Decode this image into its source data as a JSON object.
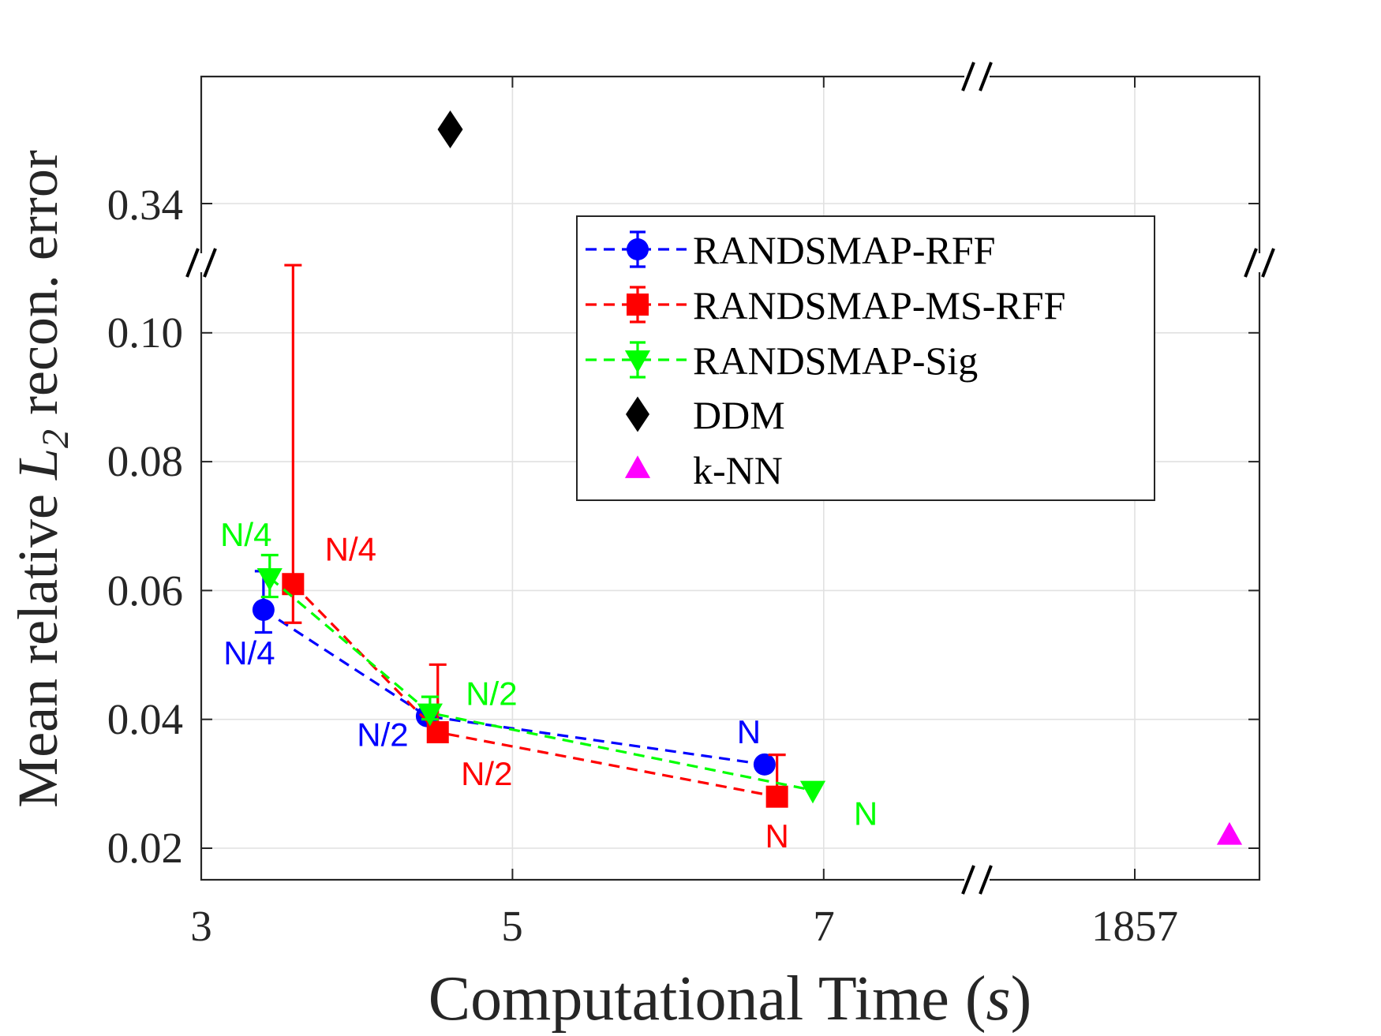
{
  "chart_data": {
    "type": "scatter",
    "title": "",
    "xlabel": "Computational Time (",
    "xlabel_var": "s",
    "xlabel_close": ")",
    "ylabel_prefix": "Mean relative ",
    "ylabel_var": "L",
    "ylabel_sub": "2",
    "ylabel_suffix": " recon. error",
    "x_ticks": [
      "3",
      "5",
      "7",
      "1857"
    ],
    "y_ticks": [
      "0.02",
      "0.04",
      "0.06",
      "0.08",
      "0.10",
      "0.34"
    ],
    "break_mark": "//",
    "axis_note": "broken axes: x jumps from 7 to 1857, y jumps from 0.10 to 0.34",
    "series": [
      {
        "name": "RANDSMAP-RFF",
        "color": "#0000ff",
        "marker": "circle",
        "x": [
          3.4,
          4.45,
          6.62
        ],
        "y": [
          0.057,
          0.0405,
          0.033
        ],
        "err_low": [
          0.0035,
          0.0,
          0.0
        ],
        "err_high": [
          0.006,
          0.0,
          0.0
        ],
        "point_labels": [
          "N/4",
          "N/2",
          "N"
        ]
      },
      {
        "name": "RANDSMAP-MS-RFF",
        "color": "#ff0000",
        "marker": "square",
        "x": [
          3.59,
          4.52,
          6.7
        ],
        "y": [
          0.061,
          0.038,
          0.028
        ],
        "err_low": [
          0.006,
          0.0015,
          0.0
        ],
        "err_high": [
          0.0495,
          0.0105,
          0.0065
        ],
        "point_labels": [
          "N/4",
          "N/2",
          "N"
        ]
      },
      {
        "name": "RANDSMAP-Sig",
        "color": "#00ff00",
        "marker": "triangle-down",
        "x": [
          3.44,
          4.47,
          6.93
        ],
        "y": [
          0.062,
          0.041,
          0.029
        ],
        "err_low": [
          0.003,
          0.001,
          0.0
        ],
        "err_high": [
          0.0035,
          0.0025,
          0.0
        ],
        "point_labels": [
          "N/4",
          "N/2",
          "N"
        ]
      },
      {
        "name": "DDM",
        "color": "#000000",
        "marker": "diamond",
        "x": [
          4.6
        ],
        "y": [
          0.35
        ]
      },
      {
        "name": "k-NN",
        "color": "#ff00ff",
        "marker": "triangle-up",
        "x": [
          1860
        ],
        "y": [
          0.022
        ]
      }
    ],
    "legend": {
      "placement": "upper-right",
      "entries": [
        "RANDSMAP-RFF",
        "RANDSMAP-MS-RFF",
        "RANDSMAP-Sig",
        "DDM",
        "k-NN"
      ]
    },
    "grid": true
  }
}
